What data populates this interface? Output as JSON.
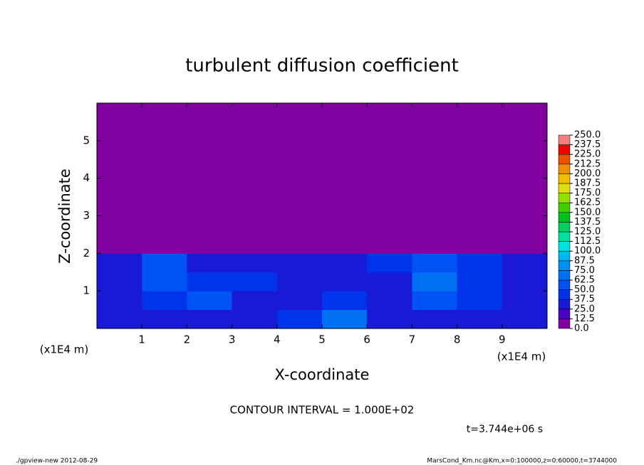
{
  "chart_data": {
    "type": "heatmap",
    "title": "turbulent diffusion coefficient",
    "x_label": "X-coordinate",
    "y_label": "Z-coordinate",
    "x_unit_left": "(x1E4 m)",
    "x_unit_right": "(x1E4 m)",
    "contour_note": "CONTOUR INTERVAL = 1.000E+02",
    "time_note": "t=3.744e+06 s",
    "footer_left": "./gpview-new  2012-08-29",
    "footer_right": "MarsCond_Km.nc@Km,x=0:100000,z=0:60000,t=3744000",
    "xlim": [
      0,
      10
    ],
    "ylim": [
      0,
      6
    ],
    "xticks": [
      1,
      2,
      3,
      4,
      5,
      6,
      7,
      8,
      9
    ],
    "yticks": [
      1,
      2,
      3,
      4,
      5
    ],
    "values": [
      [
        30,
        30,
        35,
        30,
        40,
        70,
        35,
        30,
        30,
        30
      ],
      [
        30,
        45,
        50,
        35,
        35,
        40,
        35,
        55,
        40,
        30
      ],
      [
        30,
        55,
        45,
        40,
        35,
        35,
        35,
        65,
        45,
        35
      ],
      [
        35,
        50,
        35,
        35,
        35,
        35,
        40,
        60,
        40,
        35
      ],
      [
        0,
        0,
        0,
        0,
        0,
        0,
        0,
        0,
        0,
        0
      ],
      [
        0,
        0,
        0,
        0,
        0,
        0,
        0,
        0,
        0,
        0
      ],
      [
        0,
        0,
        0,
        0,
        0,
        0,
        0,
        0,
        0,
        0
      ],
      [
        0,
        0,
        0,
        0,
        0,
        0,
        0,
        0,
        0,
        0
      ],
      [
        0,
        0,
        0,
        0,
        0,
        0,
        0,
        0,
        0,
        0
      ],
      [
        0,
        0,
        0,
        0,
        0,
        0,
        0,
        0,
        0,
        0
      ],
      [
        0,
        0,
        0,
        0,
        0,
        0,
        0,
        0,
        0,
        0
      ],
      [
        0,
        0,
        0,
        0,
        0,
        0,
        0,
        0,
        0,
        0
      ]
    ],
    "colorbar": {
      "clim": [
        0,
        250
      ],
      "ticks": [
        {
          "value": 0,
          "label": "0.0"
        },
        {
          "value": 12.5,
          "label": "12.5"
        },
        {
          "value": 25,
          "label": "25.0"
        },
        {
          "value": 37.5,
          "label": "37.5"
        },
        {
          "value": 50,
          "label": "50.0"
        },
        {
          "value": 62.5,
          "label": "62.5"
        },
        {
          "value": 75,
          "label": "75.0"
        },
        {
          "value": 87.5,
          "label": "87.5"
        },
        {
          "value": 100,
          "label": "100.0"
        },
        {
          "value": 112.5,
          "label": "112.5"
        },
        {
          "value": 125,
          "label": "125.0"
        },
        {
          "value": 137.5,
          "label": "137.5"
        },
        {
          "value": 150,
          "label": "150.0"
        },
        {
          "value": 162.5,
          "label": "162.5"
        },
        {
          "value": 175,
          "label": "175.0"
        },
        {
          "value": 187.5,
          "label": "187.5"
        },
        {
          "value": 200,
          "label": "200.0"
        },
        {
          "value": 212.5,
          "label": "212.5"
        },
        {
          "value": 225,
          "label": "225.0"
        },
        {
          "value": 237.5,
          "label": "237.5"
        },
        {
          "value": 250,
          "label": "250.0"
        }
      ],
      "colors": [
        "#8000a0",
        "#4a00c4",
        "#1a1ad6",
        "#0034ea",
        "#0052f2",
        "#0070f2",
        "#0090f0",
        "#00b8f0",
        "#00e0e0",
        "#00e0a0",
        "#00d060",
        "#00c020",
        "#40d000",
        "#90e000",
        "#e0e000",
        "#f0c000",
        "#f09000",
        "#f05000",
        "#f00000",
        "#f08080"
      ]
    }
  }
}
